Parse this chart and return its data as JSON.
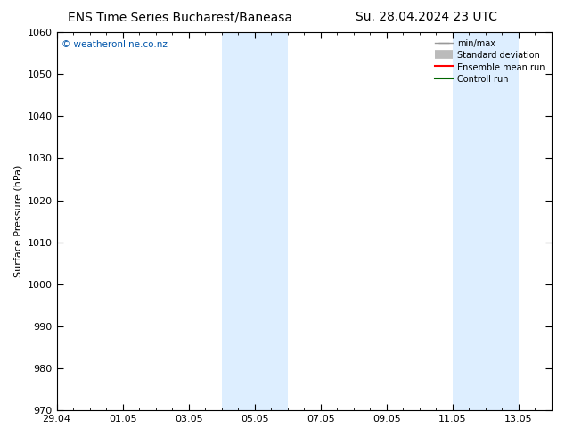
{
  "title_left": "ENS Time Series Bucharest/Baneasa",
  "title_right": "Su. 28.04.2024 23 UTC",
  "ylabel": "Surface Pressure (hPa)",
  "ylim": [
    970,
    1060
  ],
  "yticks": [
    970,
    980,
    990,
    1000,
    1010,
    1020,
    1030,
    1040,
    1050,
    1060
  ],
  "xtick_labels": [
    "29.04",
    "01.05",
    "03.05",
    "05.05",
    "07.05",
    "09.05",
    "11.05",
    "13.05"
  ],
  "band_color": "#ddeeff",
  "watermark": "© weatheronline.co.nz",
  "watermark_color": "#0055aa",
  "bg_color": "#ffffff",
  "title_fontsize": 10,
  "label_fontsize": 8,
  "tick_fontsize": 8,
  "legend_fontsize": 7
}
